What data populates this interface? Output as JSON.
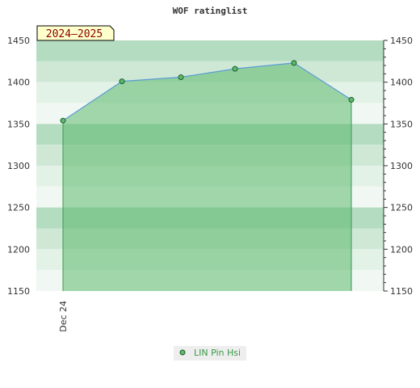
{
  "chart_data": {
    "type": "area",
    "title": "WOF ratinglist",
    "period_badge": "2024–2025",
    "xlabel": "",
    "ylabel": "",
    "ylim": [
      1150,
      1450
    ],
    "y_ticks": [
      1150,
      1200,
      1250,
      1300,
      1350,
      1400,
      1450
    ],
    "x_tick_labels": [
      "Dec 24"
    ],
    "grid": false,
    "legend_position": "bottom-center",
    "series": [
      {
        "name": "LIN Pin Hsi",
        "color": "#3a9a4a",
        "line_color": "#5b9bd5",
        "values": [
          1354,
          1401,
          1406,
          1416,
          1423,
          1379
        ]
      }
    ]
  },
  "colors": {
    "band_dark": "#b3dcc0",
    "band_mid": "#cfe8d6",
    "band_light": "#e3f2e7",
    "band_lightest": "#f1f8f3",
    "fill": "#5cb96e",
    "badge_bg": "#ffffcc",
    "badge_text": "#8b0000",
    "legend_text": "#3a9a4a",
    "legend_bg": "#eeeeee"
  }
}
